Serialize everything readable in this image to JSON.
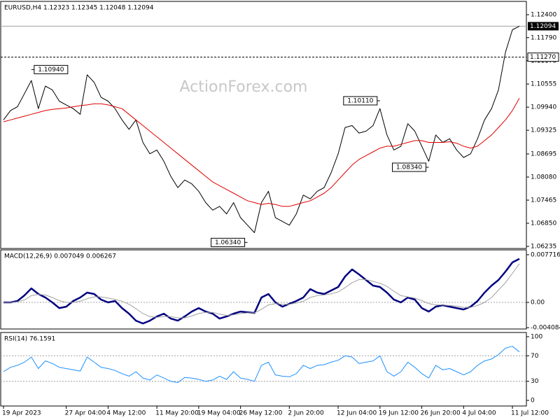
{
  "chart_data": [
    {
      "type": "line",
      "title": "EURUSD,H4  1.12323 1.12345 1.12048 1.12094",
      "watermark": "ActionForex.com",
      "ylim": [
        1.06179,
        1.12754
      ],
      "yticks": [
        {
          "value": 1.124,
          "label": "1.12400"
        },
        {
          "value": 1.1179,
          "label": "1.11790"
        },
        {
          "value": 1.11175,
          "label": "1.11175"
        },
        {
          "value": 1.10555,
          "label": "1.10555"
        },
        {
          "value": 1.0994,
          "label": "1.09940"
        },
        {
          "value": 1.09325,
          "label": "1.09325"
        },
        {
          "value": 1.08695,
          "label": "1.08695"
        },
        {
          "value": 1.0808,
          "label": "1.08080"
        },
        {
          "value": 1.07465,
          "label": "1.07465"
        },
        {
          "value": 1.0685,
          "label": "1.06850"
        },
        {
          "value": 1.06235,
          "label": "1.06235"
        }
      ],
      "series": [
        {
          "color": "#000000",
          "width": 1,
          "values": [
            1.096,
            1.0985,
            1.0995,
            1.103,
            1.1065,
            1.099,
            1.105,
            1.104,
            1.101,
            1.1,
            1.099,
            1.0975,
            1.108,
            1.106,
            1.102,
            1.101,
            1.099,
            1.096,
            1.0935,
            1.096,
            1.09,
            1.087,
            1.088,
            1.085,
            1.081,
            1.078,
            1.08,
            1.079,
            1.077,
            1.074,
            1.072,
            1.073,
            1.071,
            1.074,
            1.07,
            1.068,
            1.066,
            1.074,
            1.077,
            1.07,
            1.069,
            1.068,
            1.071,
            1.076,
            1.075,
            1.077,
            1.078,
            1.082,
            1.087,
            1.094,
            1.0945,
            1.0925,
            1.093,
            1.0945,
            1.099,
            1.092,
            1.088,
            1.089,
            1.095,
            1.093,
            1.089,
            1.085,
            1.092,
            1.09,
            1.091,
            1.088,
            1.086,
            1.087,
            1.091,
            1.096,
            1.099,
            1.104,
            1.114,
            1.12,
            1.12094
          ]
        },
        {
          "color": "#e00000",
          "width": 1,
          "values": [
            1.0955,
            1.096,
            1.0965,
            1.097,
            1.0975,
            1.098,
            1.0985,
            1.0988,
            1.099,
            1.0992,
            1.0995,
            1.0998,
            1.1,
            1.1003,
            1.1003,
            1.1,
            1.0995,
            1.099,
            1.0975,
            1.096,
            1.0945,
            1.093,
            1.0915,
            1.09,
            1.0885,
            1.087,
            1.0855,
            1.084,
            1.0825,
            1.081,
            1.0795,
            1.0785,
            1.0775,
            1.0765,
            1.0755,
            1.0745,
            1.074,
            1.0735,
            1.0738,
            1.0735,
            1.073,
            1.073,
            1.0735,
            1.074,
            1.0745,
            1.0755,
            1.0765,
            1.078,
            1.08,
            1.082,
            1.084,
            1.0855,
            1.0865,
            1.0875,
            1.0885,
            1.089,
            1.089,
            1.0895,
            1.09,
            1.0905,
            1.0905,
            1.09,
            1.09,
            1.09,
            1.0902,
            1.0898,
            1.089,
            1.0885,
            1.089,
            1.0905,
            1.092,
            1.094,
            1.096,
            1.0985,
            1.1018
          ]
        }
      ],
      "annotations": [
        {
          "x": 4,
          "value": 1.1094,
          "label": "1.10940"
        },
        {
          "x": 35,
          "value": 1.0634,
          "label": "1.06340"
        },
        {
          "x": 54,
          "value": 1.1011,
          "label": "1.10110"
        },
        {
          "x": 61,
          "value": 1.0834,
          "label": "1.08340"
        }
      ],
      "last_price": {
        "value": 1.12094,
        "label": "1.12094"
      },
      "levels": [
        {
          "value": 1.1127,
          "label": "1.11270"
        }
      ]
    },
    {
      "type": "line",
      "title": "MACD(12,26,9) 0.007049 0.006267",
      "ylim": [
        -0.0043,
        0.0085
      ],
      "yticks": [
        0.007716,
        {
          "value": 0,
          "label": "0.00"
        },
        -0.004084
      ],
      "levels": [
        0
      ],
      "series": [
        {
          "color": "#000080",
          "width": 2.5,
          "values": [
            0,
            0,
            0.000227,
            0.001135,
            0.002269,
            0.001362,
            0.000794,
            0,
            -0.000908,
            -0.000681,
            0.000227,
            0.000794,
            0.001589,
            0.001362,
            0.000454,
            0,
            0.000227,
            -0.000908,
            -0.001816,
            -0.00295,
            -0.003404,
            -0.00295,
            -0.002269,
            -0.001816,
            -0.00261,
            -0.00295,
            -0.002269,
            -0.001475,
            -0.000908,
            -0.001475,
            -0.001816,
            -0.00261,
            -0.002269,
            -0.001816,
            -0.001475,
            -0.001589,
            -0.001702,
            0.000794,
            0.001362,
            0,
            -0.000681,
            -0.000227,
            0.000227,
            0.000794,
            0.002156,
            0.001589,
            0.001362,
            0.001929,
            0.002497,
            0.004199,
            0.005334,
            0.00454,
            0.003631,
            0.002723,
            0.002497,
            0.001589,
            0.000454,
            0,
            0.000794,
            0.000454,
            -0.000908,
            -0.001475,
            -0.000681,
            -0.000454,
            -0.000681,
            -0.000908,
            -0.001135,
            -0.000681,
            0.000227,
            0.001589,
            0.002723,
            0.003631,
            0.004993,
            0.006469,
            0.007049
          ]
        },
        {
          "color": "#a0a0a0",
          "width": 1,
          "values": [
            0,
            0,
            0.0001,
            0.0004,
            0.0011,
            0.0013,
            0.0012,
            0.0008,
            0.0003,
            0,
            0,
            0.0002,
            0.0006,
            0.0009,
            0.0009,
            0.0007,
            0.0005,
            0.0002,
            -0.0003,
            -0.001,
            -0.0018,
            -0.0023,
            -0.0024,
            -0.0023,
            -0.0023,
            -0.0025,
            -0.0025,
            -0.0022,
            -0.0018,
            -0.0016,
            -0.0016,
            -0.0019,
            -0.0021,
            -0.002,
            -0.0018,
            -0.0017,
            -0.0017,
            -0.0011,
            -0.0004,
            -0.0002,
            -0.0003,
            -0.0003,
            -0.0001,
            0.0002,
            0.0008,
            0.0011,
            0.0012,
            0.0014,
            0.0017,
            0.0024,
            0.0032,
            0.0037,
            0.0037,
            0.0034,
            0.0031,
            0.0026,
            0.0018,
            0.0011,
            0.0009,
            0.0007,
            0.0003,
            -0.0002,
            -0.0004,
            -0.0004,
            -0.0005,
            -0.0006,
            -0.0008,
            -0.0008,
            -0.0005,
            0,
            0.0008,
            0.002,
            0.0032,
            0.0047,
            0.006267
          ]
        }
      ]
    },
    {
      "type": "line",
      "title": "RSI(14) 76.1591",
      "ylim": [
        -8.8,
        106.6
      ],
      "yticks": [
        0,
        30,
        70,
        100
      ],
      "levels": [
        30,
        70
      ],
      "series": [
        {
          "color": "#1e90ff",
          "width": 1,
          "values": [
            45,
            52,
            55,
            60,
            68,
            50,
            62,
            58,
            52,
            50,
            48,
            46,
            68,
            60,
            52,
            50,
            47,
            42,
            38,
            45,
            35,
            32,
            40,
            35,
            30,
            28,
            36,
            35,
            33,
            30,
            32,
            38,
            33,
            45,
            35,
            33,
            30,
            55,
            60,
            40,
            38,
            37,
            42,
            55,
            50,
            55,
            56,
            60,
            63,
            70,
            68,
            58,
            60,
            62,
            70,
            45,
            38,
            45,
            60,
            52,
            42,
            35,
            55,
            48,
            50,
            45,
            40,
            45,
            55,
            62,
            65,
            72,
            82,
            85,
            76.1591
          ]
        }
      ],
      "categories": [
        "19 Apr 2023",
        null,
        null,
        null,
        null,
        null,
        null,
        null,
        null,
        "27 Apr 04:00",
        null,
        null,
        null,
        null,
        null,
        "4 May 12:00",
        null,
        null,
        null,
        null,
        null,
        null,
        "11 May 20:00",
        null,
        null,
        null,
        null,
        null,
        "19 May 04:00",
        null,
        null,
        null,
        null,
        null,
        "26 May 12:00",
        null,
        null,
        null,
        null,
        null,
        null,
        "2 Jun 20:00",
        null,
        null,
        null,
        null,
        null,
        null,
        "12 Jun 04:00",
        null,
        null,
        null,
        null,
        null,
        "19 Jun 12:00",
        null,
        null,
        null,
        null,
        null,
        "26 Jun 20:00",
        null,
        null,
        null,
        null,
        null,
        "4 Jul 04:00",
        null,
        null,
        null,
        null,
        null,
        null,
        "11 Jul 12:00",
        null
      ]
    }
  ]
}
